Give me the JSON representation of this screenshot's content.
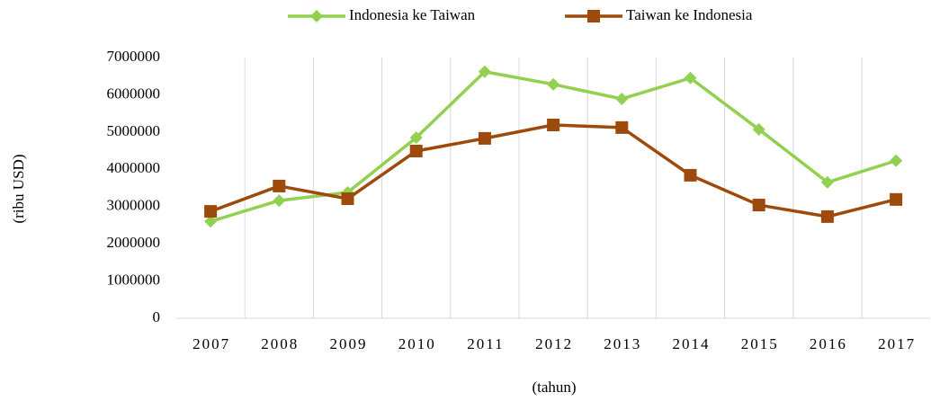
{
  "chart_data": {
    "type": "line",
    "x_label": "(tahun)",
    "y_label": "(ribu USD)",
    "categories": [
      "2007",
      "2008",
      "2009",
      "2010",
      "2011",
      "2012",
      "2013",
      "2014",
      "2015",
      "2016",
      "2017"
    ],
    "series": [
      {
        "name": "Indonesia ke Taiwan",
        "color": "#92d050",
        "marker": "diamond",
        "values": [
          2600000,
          3160000,
          3380000,
          4850000,
          6620000,
          6280000,
          5890000,
          6450000,
          5070000,
          3650000,
          4230000
        ]
      },
      {
        "name": "Taiwan ke Indonesia",
        "color": "#9e4a0c",
        "marker": "square",
        "values": [
          2870000,
          3550000,
          3210000,
          4490000,
          4830000,
          5190000,
          5120000,
          3840000,
          3040000,
          2730000,
          3190000
        ]
      }
    ],
    "ylim": [
      0,
      7000000
    ],
    "yticks": [
      0,
      1000000,
      2000000,
      3000000,
      4000000,
      5000000,
      6000000,
      7000000
    ],
    "grid": "x",
    "legend": "top"
  }
}
